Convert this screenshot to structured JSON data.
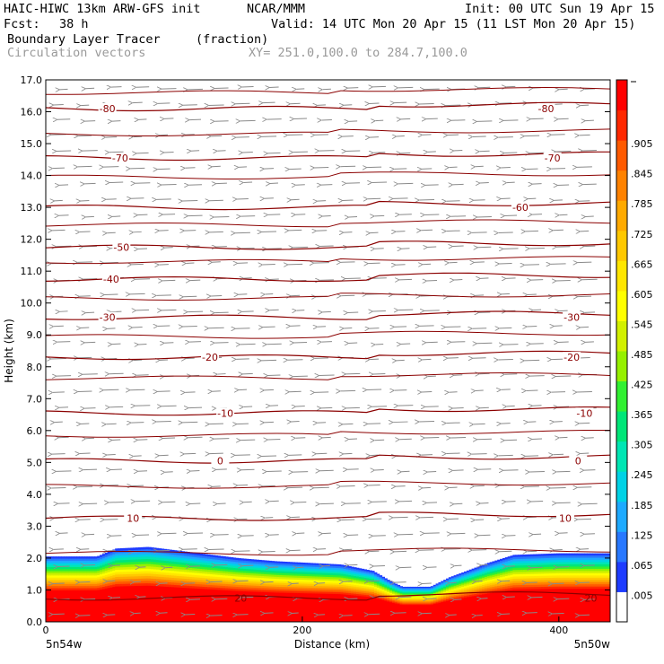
{
  "header": {
    "model": "HAIC-HIWC 13km ARW-GFS init",
    "org": "NCAR/MMM",
    "init": "Init: 00 UTC Sun 19 Apr 15",
    "fcst_label": "Fcst:",
    "fcst_value": "38 h",
    "valid": "Valid: 14 UTC Mon 20 Apr 15 (11 LST Mon 20 Apr 15)",
    "field": "Boundary Layer Tracer",
    "field_units": "(fraction)",
    "overlay": "Circulation vectors",
    "xy": "XY= 251.0,100.0 to 284.7,100.0"
  },
  "chart_data": {
    "type": "heatmap",
    "title": "Boundary Layer Tracer",
    "xlabel": "Distance (km)",
    "ylabel": "Height (km)",
    "xlim": [
      0,
      440
    ],
    "ylim": [
      0,
      17
    ],
    "x_ticks": [
      "0",
      "200",
      "400"
    ],
    "x_tick_values": [
      0,
      200,
      400
    ],
    "y_ticks": [
      "0.0",
      "1.0",
      "2.0",
      "3.0",
      "4.0",
      "5.0",
      "6.0",
      "7.0",
      "8.0",
      "9.0",
      "10.0",
      "11.0",
      "12.0",
      "13.0",
      "14.0",
      "15.0",
      "16.0",
      "17.0"
    ],
    "x_end_labels": {
      "left": "5n54w",
      "right": "5n50w"
    },
    "colorbar": {
      "labels": [
        ".005",
        ".065",
        ".125",
        ".185",
        ".245",
        ".305",
        ".365",
        ".425",
        ".485",
        ".545",
        ".605",
        ".665",
        ".725",
        ".785",
        ".845",
        ".905"
      ],
      "colors": [
        "#ffffff",
        "#1e3cff",
        "#2878ff",
        "#1eaaff",
        "#00d2e6",
        "#00e6b4",
        "#00e678",
        "#32f032",
        "#96f000",
        "#d2f000",
        "#ffff00",
        "#ffe600",
        "#ffc800",
        "#ffaa00",
        "#ff8200",
        "#ff5a00",
        "#ff2800",
        "#ff0000"
      ]
    },
    "tracer_top_km": [
      [
        0,
        2.05
      ],
      [
        40,
        2.05
      ],
      [
        55,
        2.3
      ],
      [
        80,
        2.35
      ],
      [
        110,
        2.2
      ],
      [
        150,
        2.0
      ],
      [
        180,
        1.9
      ],
      [
        230,
        1.8
      ],
      [
        255,
        1.6
      ],
      [
        270,
        1.25
      ],
      [
        278,
        1.1
      ],
      [
        300,
        1.1
      ],
      [
        315,
        1.4
      ],
      [
        345,
        1.85
      ],
      [
        365,
        2.1
      ],
      [
        400,
        2.15
      ],
      [
        440,
        2.15
      ]
    ],
    "temperature_contours": [
      {
        "value": 10,
        "height_km": 3.25,
        "labels": [
          "10"
        ]
      },
      {
        "value": 0,
        "height_km": 5.05,
        "labels": [
          "0"
        ]
      },
      {
        "value": -10,
        "height_km": 6.55,
        "labels": [
          "-10"
        ]
      },
      {
        "value": -20,
        "height_km": 8.3,
        "labels": [
          "-20"
        ]
      },
      {
        "value": -30,
        "height_km": 9.55,
        "labels": [
          "-30"
        ]
      },
      {
        "value": -40,
        "height_km": 10.75,
        "labels": [
          "-40"
        ]
      },
      {
        "value": -50,
        "height_km": 11.75,
        "labels": [
          "-50"
        ]
      },
      {
        "value": -60,
        "height_km": 13.0,
        "labels": [
          "-60"
        ]
      },
      {
        "value": -70,
        "height_km": 14.55,
        "labels": [
          "-70"
        ]
      },
      {
        "value": -80,
        "height_km": 16.1,
        "labels": [
          "-80"
        ]
      },
      {
        "value": 20,
        "height_km": 0.75,
        "labels": [
          "20"
        ]
      }
    ],
    "legend": "none",
    "grid": false
  }
}
